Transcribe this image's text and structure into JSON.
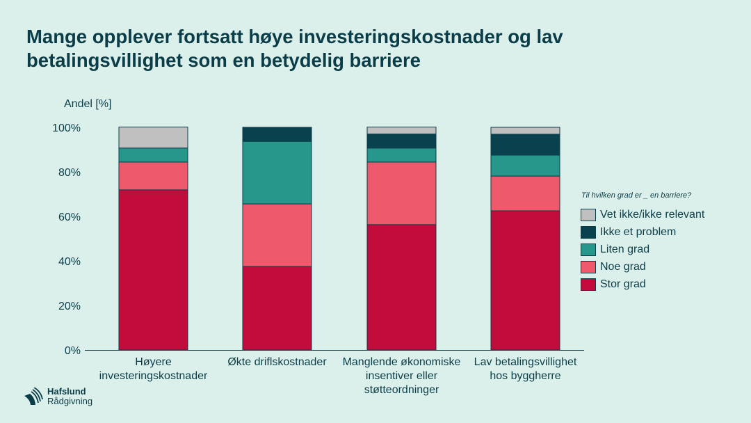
{
  "title": "Mange opplever fortsatt høye investeringskostnader og lav betalingsvillighet som en betydelig barriere",
  "logo": {
    "line1": "Hafslund",
    "line2": "Rådgivning"
  },
  "chart_data": {
    "type": "bar",
    "stacked": true,
    "ylabel": "Andel [%]",
    "ylim": [
      0,
      100
    ],
    "yticks": [
      "0%",
      "20%",
      "40%",
      "60%",
      "80%",
      "100%"
    ],
    "legend_title": "Til hvilken grad er _ en barriere?",
    "legend_position": "right",
    "categories": [
      "Høyere investeringskostnader",
      "Økte driflskostnader",
      "Manglende økonomiske insentiver eller støtteordninger",
      "Lav betalingsvillighet hos byggherre"
    ],
    "series": [
      {
        "name": "Stor grad",
        "color": "#c10c3c",
        "values": [
          71.9,
          37.5,
          56.3,
          62.5
        ]
      },
      {
        "name": "Noe grad",
        "color": "#ee5a6c",
        "values": [
          12.5,
          28.1,
          28.1,
          15.6
        ]
      },
      {
        "name": "Liten grad",
        "color": "#27968b",
        "values": [
          6.3,
          28.1,
          6.3,
          9.4
        ]
      },
      {
        "name": "Ikke et problem",
        "color": "#0a414e",
        "values": [
          0,
          6.3,
          6.3,
          9.4
        ]
      },
      {
        "name": "Vet ikke/ikke relevant",
        "color": "#c0c0c0",
        "values": [
          9.4,
          0,
          3.1,
          3.1
        ]
      }
    ]
  }
}
